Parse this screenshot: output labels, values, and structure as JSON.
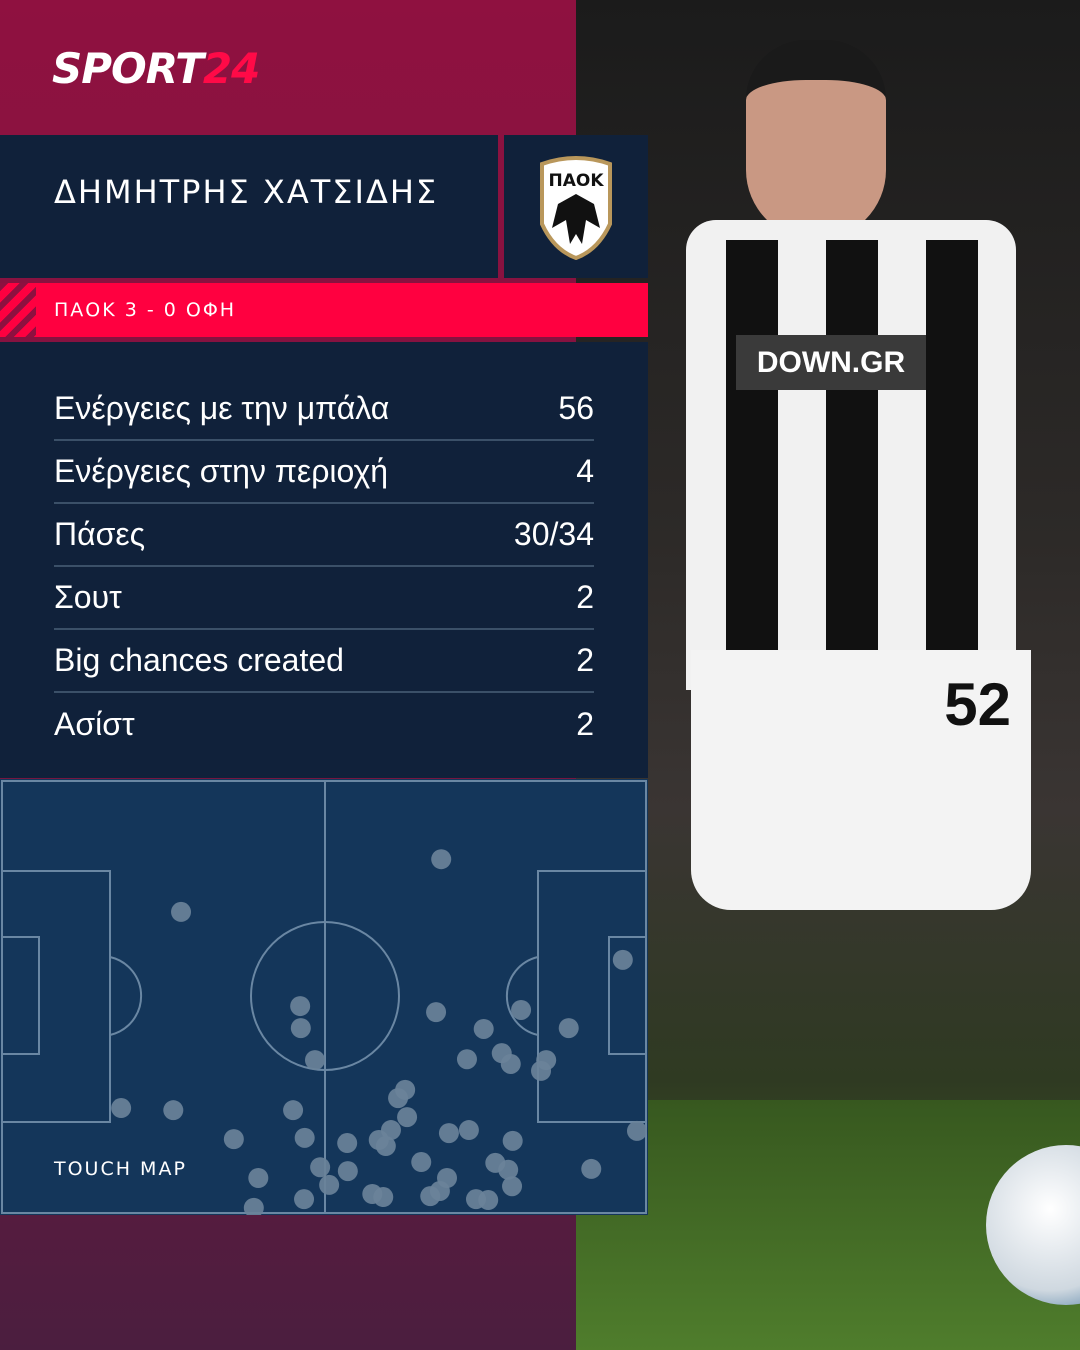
{
  "brand": {
    "logo_text_a": "SPORT",
    "logo_text_b": "24",
    "accent": "#ff0040"
  },
  "player": {
    "name": "ΔΗΜΗΤΡΗΣ ΧΑΤΣΙΔΗΣ",
    "club_crest": "ΠΑΟΚ"
  },
  "match": {
    "score_line": "ΠΑΟΚ 3 - 0 ΟΦΗ"
  },
  "stats": [
    {
      "label": "Ενέργειες με την μπάλα",
      "value": "56"
    },
    {
      "label": "Ενέργειες στην περιοχή",
      "value": "4"
    },
    {
      "label": "Πάσες",
      "value": "30/34"
    },
    {
      "label": "Σουτ",
      "value": "2"
    },
    {
      "label": "Big chances created",
      "value": "2"
    },
    {
      "label": "Ασίστ",
      "value": "2"
    }
  ],
  "touch_map": {
    "label": "TOUCH MAP",
    "point_color": "#6a8299",
    "points": [
      [
        68.2,
        18.1
      ],
      [
        27.8,
        30.3
      ],
      [
        96.4,
        41.4
      ],
      [
        46.3,
        52.1
      ],
      [
        46.4,
        57.2
      ],
      [
        48.6,
        64.6
      ],
      [
        67.4,
        53.5
      ],
      [
        80.6,
        53.0
      ],
      [
        88.0,
        57.2
      ],
      [
        74.8,
        57.4
      ],
      [
        72.2,
        64.4
      ],
      [
        77.6,
        63.0
      ],
      [
        79.0,
        65.5
      ],
      [
        84.5,
        64.6
      ],
      [
        83.7,
        67.1
      ],
      [
        18.5,
        75.7
      ],
      [
        26.6,
        76.2
      ],
      [
        45.2,
        76.2
      ],
      [
        36.0,
        82.9
      ],
      [
        47.0,
        82.6
      ],
      [
        53.6,
        83.8
      ],
      [
        62.6,
        71.5
      ],
      [
        61.5,
        73.4
      ],
      [
        62.9,
        77.8
      ],
      [
        60.4,
        80.8
      ],
      [
        58.5,
        83.1
      ],
      [
        59.6,
        84.5
      ],
      [
        69.4,
        81.5
      ],
      [
        72.5,
        80.8
      ],
      [
        79.3,
        83.3
      ],
      [
        98.6,
        81.0
      ],
      [
        39.8,
        91.9
      ],
      [
        49.4,
        89.4
      ],
      [
        53.7,
        90.3
      ],
      [
        65.1,
        88.2
      ],
      [
        76.6,
        88.4
      ],
      [
        78.6,
        90.0
      ],
      [
        91.5,
        89.8
      ],
      [
        50.8,
        93.5
      ],
      [
        46.9,
        96.8
      ],
      [
        57.5,
        95.6
      ],
      [
        59.2,
        96.3
      ],
      [
        66.5,
        96.1
      ],
      [
        68.0,
        94.9
      ],
      [
        69.1,
        91.9
      ],
      [
        73.6,
        96.8
      ],
      [
        75.5,
        97.0
      ],
      [
        79.2,
        93.8
      ],
      [
        39.1,
        98.8
      ]
    ]
  },
  "photo": {
    "sponsor": "DOWN.GR",
    "shirt_number": "52"
  }
}
